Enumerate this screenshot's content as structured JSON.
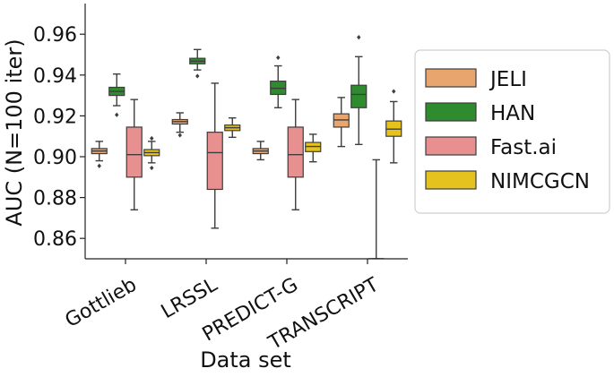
{
  "chart_data": {
    "type": "box",
    "xlabel": "Data set",
    "ylabel": "AUC (N=100 iter)",
    "ylim": [
      0.85,
      0.975
    ],
    "yticks": [
      0.86,
      0.88,
      0.9,
      0.92,
      0.94,
      0.96
    ],
    "ytick_labels": [
      "0.86",
      "0.88",
      "0.90",
      "0.92",
      "0.94",
      "0.96"
    ],
    "categories": [
      "Gottlieb",
      "LRSSL",
      "PREDICT-G",
      "TRANSCRIPT"
    ],
    "legend_position": "right",
    "series": [
      {
        "name": "JELI",
        "color": "#e8a56e",
        "boxes": [
          {
            "whislo": 0.898,
            "q1": 0.9015,
            "med": 0.9028,
            "q3": 0.904,
            "whishi": 0.9075,
            "fliers": [
              0.8955
            ]
          },
          {
            "whislo": 0.912,
            "q1": 0.916,
            "med": 0.9172,
            "q3": 0.9182,
            "whishi": 0.9215,
            "fliers": [
              0.9105
            ]
          },
          {
            "whislo": 0.8985,
            "q1": 0.9015,
            "med": 0.9028,
            "q3": 0.904,
            "whishi": 0.9075,
            "fliers": []
          },
          {
            "whislo": 0.905,
            "q1": 0.9145,
            "med": 0.918,
            "q3": 0.921,
            "whishi": 0.929,
            "fliers": []
          }
        ]
      },
      {
        "name": "HAN",
        "color": "#2e8b2e",
        "boxes": [
          {
            "whislo": 0.925,
            "q1": 0.93,
            "med": 0.932,
            "q3": 0.934,
            "whishi": 0.9405,
            "fliers": [
              0.9205
            ]
          },
          {
            "whislo": 0.9425,
            "q1": 0.9455,
            "med": 0.9468,
            "q3": 0.9482,
            "whishi": 0.9525,
            "fliers": [
              0.9395
            ]
          },
          {
            "whislo": 0.924,
            "q1": 0.9305,
            "med": 0.9335,
            "q3": 0.937,
            "whishi": 0.9445,
            "fliers": [
              0.9485
            ]
          },
          {
            "whislo": 0.906,
            "q1": 0.924,
            "med": 0.9305,
            "q3": 0.935,
            "whishi": 0.949,
            "fliers": [
              0.9585
            ]
          }
        ]
      },
      {
        "name": "Fast.ai",
        "color": "#e89090",
        "boxes": [
          {
            "whislo": 0.874,
            "q1": 0.89,
            "med": 0.901,
            "q3": 0.9145,
            "whishi": 0.928,
            "fliers": []
          },
          {
            "whislo": 0.865,
            "q1": 0.884,
            "med": 0.902,
            "q3": 0.912,
            "whishi": 0.936,
            "fliers": []
          },
          {
            "whislo": 0.874,
            "q1": 0.89,
            "med": 0.901,
            "q3": 0.9145,
            "whishi": 0.928,
            "fliers": []
          },
          {
            "whislo": 0.85,
            "q1": 0.85,
            "med": 0.85,
            "q3": 0.85,
            "whishi": 0.8985,
            "fliers": []
          }
        ]
      },
      {
        "name": "NIMCGCN",
        "color": "#e6c21f",
        "boxes": [
          {
            "whislo": 0.897,
            "q1": 0.9005,
            "med": 0.902,
            "q3": 0.9035,
            "whishi": 0.9075,
            "fliers": [
              0.8945,
              0.909
            ]
          },
          {
            "whislo": 0.9095,
            "q1": 0.9128,
            "med": 0.9142,
            "q3": 0.9155,
            "whishi": 0.919,
            "fliers": []
          },
          {
            "whislo": 0.8975,
            "q1": 0.9025,
            "med": 0.905,
            "q3": 0.907,
            "whishi": 0.911,
            "fliers": []
          },
          {
            "whislo": 0.897,
            "q1": 0.91,
            "med": 0.9135,
            "q3": 0.9175,
            "whishi": 0.927,
            "fliers": [
              0.932
            ]
          }
        ]
      }
    ]
  }
}
